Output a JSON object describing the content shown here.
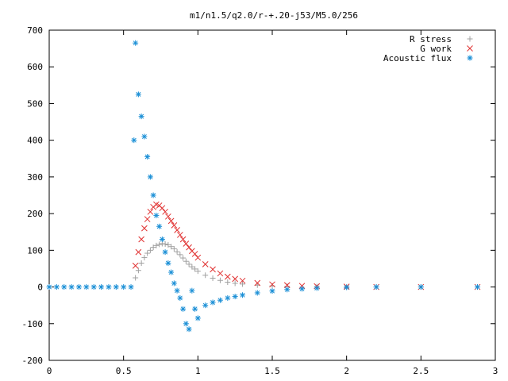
{
  "chart_data": {
    "type": "scatter",
    "title": "m1/n1.5/q2.0/r-+.20-j53/M5.0/256",
    "xlabel": "",
    "ylabel": "",
    "xlim": [
      0,
      3
    ],
    "ylim": [
      -200,
      700
    ],
    "xticks": [
      "0",
      "0.5",
      "1",
      "1.5",
      "2",
      "2.5",
      "3"
    ],
    "yticks": [
      "-200",
      "-100",
      "0",
      "100",
      "200",
      "300",
      "400",
      "500",
      "600",
      "700"
    ],
    "grid": false,
    "legend_position": "top-right",
    "series": [
      {
        "name": "R stress",
        "marker": "plus",
        "color": "#a0a0a0",
        "x": [
          0.58,
          0.6,
          0.62,
          0.64,
          0.66,
          0.68,
          0.7,
          0.72,
          0.74,
          0.76,
          0.78,
          0.8,
          0.82,
          0.84,
          0.86,
          0.88,
          0.9,
          0.92,
          0.94,
          0.96,
          0.98,
          1.0,
          1.05,
          1.1,
          1.15,
          1.2,
          1.25,
          1.3,
          1.4,
          1.5,
          1.6,
          1.8,
          2.0,
          2.2,
          2.5,
          2.88
        ],
        "y": [
          25,
          45,
          65,
          80,
          92,
          100,
          108,
          113,
          116,
          118,
          117,
          115,
          110,
          104,
          96,
          88,
          79,
          70,
          62,
          55,
          49,
          43,
          32,
          24,
          18,
          13,
          10,
          8,
          5,
          3,
          2,
          1,
          0,
          0,
          0,
          0
        ]
      },
      {
        "name": "G work",
        "marker": "x",
        "color": "#e03030",
        "x": [
          0.58,
          0.6,
          0.62,
          0.64,
          0.66,
          0.68,
          0.7,
          0.72,
          0.74,
          0.76,
          0.78,
          0.8,
          0.82,
          0.84,
          0.86,
          0.88,
          0.9,
          0.92,
          0.94,
          0.96,
          0.98,
          1.0,
          1.05,
          1.1,
          1.15,
          1.2,
          1.25,
          1.3,
          1.4,
          1.5,
          1.6,
          1.7,
          1.8,
          2.0,
          2.2,
          2.5,
          2.88
        ],
        "y": [
          58,
          95,
          130,
          160,
          185,
          205,
          218,
          225,
          222,
          215,
          205,
          192,
          180,
          168,
          155,
          142,
          130,
          118,
          108,
          98,
          90,
          80,
          62,
          48,
          37,
          28,
          22,
          17,
          11,
          7,
          5,
          3,
          2,
          1,
          0,
          0,
          0
        ]
      },
      {
        "name": "Acoustic flux",
        "marker": "star",
        "color": "#1a8fd6",
        "x": [
          0.0,
          0.05,
          0.1,
          0.15,
          0.2,
          0.25,
          0.3,
          0.35,
          0.4,
          0.45,
          0.5,
          0.55,
          0.57,
          0.58,
          0.6,
          0.62,
          0.64,
          0.66,
          0.68,
          0.7,
          0.72,
          0.74,
          0.76,
          0.78,
          0.8,
          0.82,
          0.84,
          0.86,
          0.88,
          0.9,
          0.92,
          0.94,
          0.96,
          0.98,
          1.0,
          1.05,
          1.1,
          1.15,
          1.2,
          1.25,
          1.3,
          1.4,
          1.5,
          1.6,
          1.7,
          1.8,
          2.0,
          2.2,
          2.5,
          2.88
        ],
        "y": [
          0,
          0,
          0,
          0,
          0,
          0,
          0,
          0,
          0,
          0,
          0,
          0,
          400,
          665,
          525,
          465,
          410,
          355,
          300,
          250,
          195,
          165,
          130,
          95,
          65,
          40,
          10,
          -10,
          -30,
          -60,
          -100,
          -115,
          -10,
          -60,
          -85,
          -50,
          -42,
          -36,
          -30,
          -26,
          -22,
          -16,
          -11,
          -7,
          -5,
          -3,
          -1,
          0,
          0,
          0
        ]
      }
    ]
  }
}
